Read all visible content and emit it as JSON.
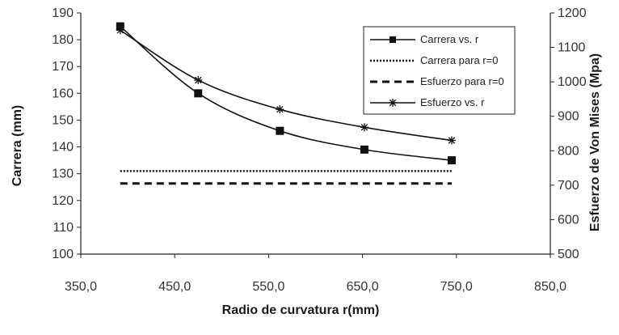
{
  "chart_data": {
    "type": "line",
    "title": "",
    "xlabel": "Radio de curvatura r(mm)",
    "ylabel": "Carrera (mm)",
    "y2label": "Esfuerzo de Von Mises (Mpa)",
    "xlim": [
      350,
      850
    ],
    "ylim": [
      100,
      190
    ],
    "y2lim": [
      500,
      1200
    ],
    "x_ticks": [
      "350,0",
      "450,0",
      "550,0",
      "650,0",
      "750,0",
      "850,0"
    ],
    "y_ticks": [
      "100",
      "110",
      "120",
      "130",
      "140",
      "150",
      "160",
      "170",
      "180",
      "190"
    ],
    "y2_ticks": [
      "500",
      "600",
      "700",
      "800",
      "900",
      "1000",
      "1100",
      "1200"
    ],
    "grid": false,
    "legend_position": "top-right",
    "series": [
      {
        "name": "Carrera vs. r",
        "axis": "left",
        "style": "solid-square",
        "x": [
          392,
          475,
          562,
          652,
          745
        ],
        "y": [
          185,
          160,
          146,
          139,
          135
        ]
      },
      {
        "name": "Carrera para r=0",
        "axis": "left",
        "style": "dotted",
        "x": [
          392,
          745
        ],
        "y": [
          131,
          131
        ]
      },
      {
        "name": "Esfuerzo para r=0",
        "axis": "right",
        "style": "dashed",
        "x": [
          392,
          745
        ],
        "y": [
          705,
          705
        ]
      },
      {
        "name": "Esfuerzo vs. r",
        "axis": "right",
        "style": "solid-star",
        "x": [
          392,
          475,
          562,
          652,
          745
        ],
        "y": [
          1150,
          1005,
          920,
          868,
          830
        ]
      }
    ],
    "colors": {
      "line": "#111111",
      "axis": "#222222"
    }
  }
}
